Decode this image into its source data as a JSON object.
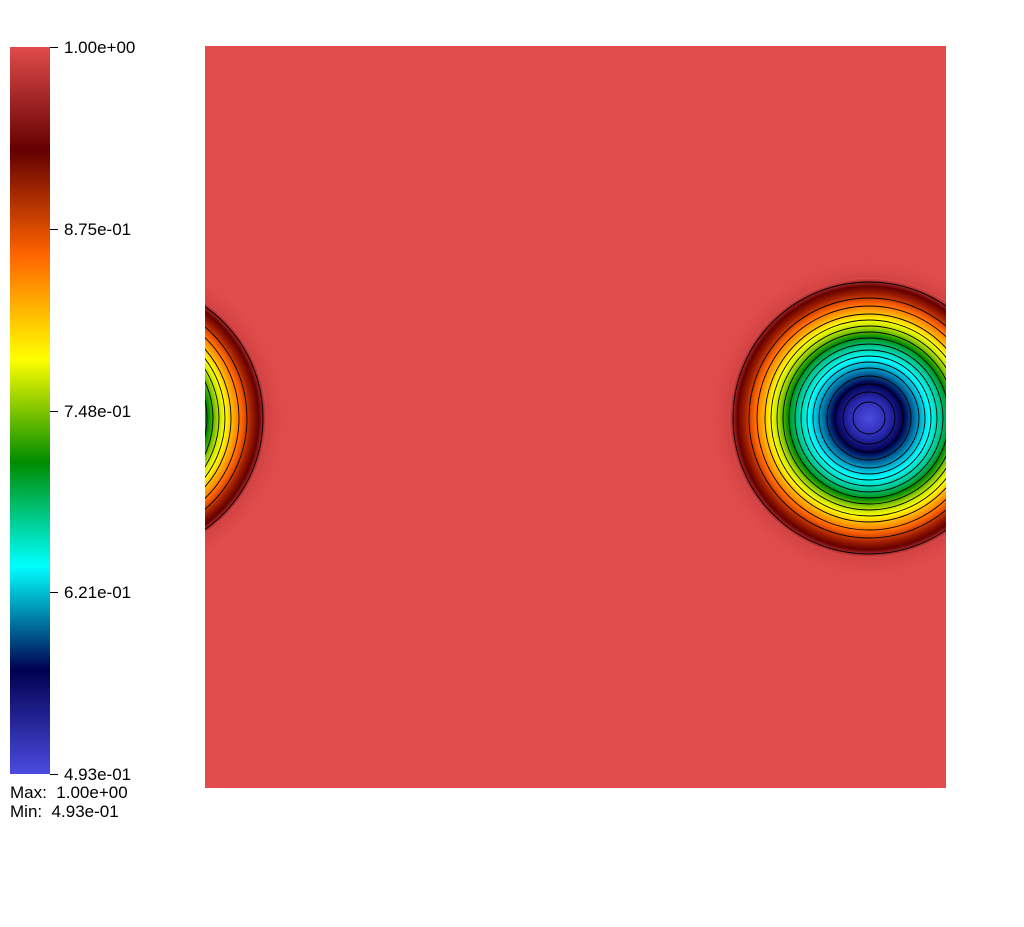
{
  "colorbar": {
    "colors": [
      "#4b4be0",
      "#000050",
      "#00ffff",
      "#008c00",
      "#ffff00",
      "#ff6400",
      "#640000",
      "#e04b4b"
    ],
    "labels": [
      {
        "value": 1.0,
        "text": "1.00e+00"
      },
      {
        "value": 0.875,
        "text": "8.75e-01"
      },
      {
        "value": 0.748,
        "text": "7.48e-01"
      },
      {
        "value": 0.621,
        "text": "6.21e-01"
      },
      {
        "value": 0.493,
        "text": "4.93e-01"
      }
    ]
  },
  "range": {
    "max_line": "Max:  1.00e+00",
    "min_line": "Min:  4.93e-01"
  },
  "field": {
    "background_color": "#e04b4b",
    "min_value": 0.493,
    "max_value": 1.0
  }
}
